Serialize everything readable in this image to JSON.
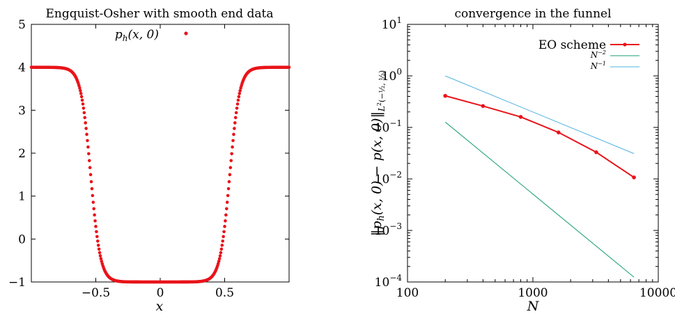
{
  "chart_data": [
    {
      "type": "scatter",
      "title": "Engquist-Osher with smooth end data",
      "xlabel": "x",
      "ylabel": "",
      "xlim": [
        -1,
        1
      ],
      "ylim": [
        -1,
        5
      ],
      "xticks": [
        -0.5,
        0,
        0.5
      ],
      "xtick_labels": [
        "−0.5",
        "0",
        "0.5"
      ],
      "yticks": [
        -1,
        0,
        1,
        2,
        3,
        4,
        5
      ],
      "ytick_labels": [
        "−1",
        "0",
        "1",
        "2",
        "3",
        "4",
        "5"
      ],
      "grid": false,
      "legend_position": "top-center",
      "color": "#e8141a",
      "series": [
        {
          "name": "p_h(x, 0)",
          "label_parts": {
            "p": "p",
            "sub": "h",
            "args": "(x, 0)"
          },
          "profile": {
            "high": 4,
            "low": -1,
            "left_center": -0.54,
            "right_center": 0.54,
            "width": 0.038
          },
          "points_per_unit": 200
        }
      ]
    },
    {
      "type": "line",
      "title": "convergence in the funnel",
      "xlabel": "N",
      "ylabel": "||p_h(x,0) − p(x,0)||_{L²(−1/2, 1/2)}",
      "ylabel_parts": {
        "pre": "‖p",
        "sub": "h",
        "mid": "(x, 0) − p(x, 0)‖",
        "norm": "L",
        "exp": "2",
        "interval": "(−½, ½)"
      },
      "xscale": "log",
      "yscale": "log",
      "xlim": [
        100,
        10000
      ],
      "ylim": [
        0.0001,
        10
      ],
      "xticks": [
        100,
        1000,
        10000
      ],
      "xtick_labels": [
        "100",
        "1000",
        "10000"
      ],
      "yticks": [
        0.0001,
        0.001,
        0.01,
        0.1,
        1,
        10
      ],
      "ytick_labels": [
        {
          "base": "10",
          "exp": "−4"
        },
        {
          "base": "10",
          "exp": "−3"
        },
        {
          "base": "10",
          "exp": "−2"
        },
        {
          "base": "10",
          "exp": "−1"
        },
        {
          "base": "10",
          "exp": "0"
        },
        {
          "base": "10",
          "exp": "1"
        }
      ],
      "grid": false,
      "legend_position": "top-right",
      "series": [
        {
          "name": "EO scheme",
          "color": "#e8141a",
          "markers": true,
          "x": [
            200,
            400,
            800,
            1600,
            3200,
            6400
          ],
          "y": [
            0.41,
            0.26,
            0.16,
            0.08,
            0.033,
            0.0107
          ]
        },
        {
          "name": "N^{-2}",
          "label_parts": {
            "base": "N",
            "exp": "−2"
          },
          "color": "#1a9e77",
          "markers": false,
          "x": [
            200,
            6400
          ],
          "y": [
            0.127,
            0.000124
          ]
        },
        {
          "name": "N^{-1}",
          "label_parts": {
            "base": "N",
            "exp": "−1"
          },
          "color": "#4fb0e0",
          "markers": false,
          "x": [
            200,
            6400
          ],
          "y": [
            1.0,
            0.031
          ]
        }
      ]
    }
  ]
}
